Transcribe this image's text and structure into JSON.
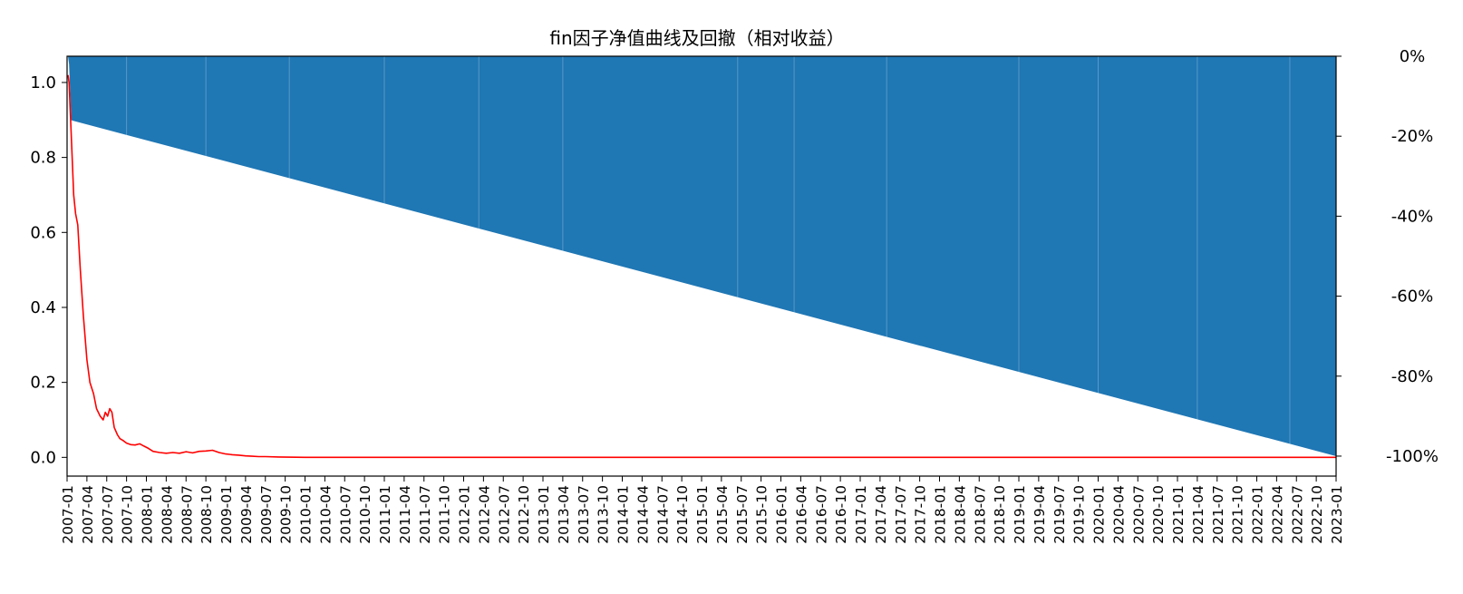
{
  "chart_data": {
    "type": "line",
    "title": "fin因子净值曲线及回撤（相对收益）",
    "xlabel": "",
    "ylabel": "",
    "xlim": [
      "2007-01",
      "2023-01"
    ],
    "ylim": [
      -0.05,
      1.07
    ],
    "y2lim": [
      -1.05,
      0.0
    ],
    "yticks": [
      "0.0",
      "0.2",
      "0.4",
      "0.6",
      "0.8",
      "1.0"
    ],
    "y2ticks": [
      "-100%",
      "-80%",
      "-60%",
      "-40%",
      "-20%",
      "0%"
    ],
    "xticks": [
      "2007-01",
      "2007-04",
      "2007-07",
      "2007-10",
      "2008-01",
      "2008-04",
      "2008-07",
      "2008-10",
      "2009-01",
      "2009-04",
      "2009-07",
      "2009-10",
      "2010-01",
      "2010-04",
      "2010-07",
      "2010-10",
      "2011-01",
      "2011-04",
      "2011-07",
      "2011-10",
      "2012-01",
      "2012-04",
      "2012-07",
      "2012-10",
      "2013-01",
      "2013-04",
      "2013-07",
      "2013-10",
      "2014-01",
      "2014-04",
      "2014-07",
      "2014-10",
      "2015-01",
      "2015-04",
      "2015-07",
      "2015-10",
      "2016-01",
      "2016-04",
      "2016-07",
      "2016-10",
      "2017-01",
      "2017-04",
      "2017-07",
      "2017-10",
      "2018-01",
      "2018-04",
      "2018-07",
      "2018-10",
      "2019-01",
      "2019-04",
      "2019-07",
      "2019-10",
      "2020-01",
      "2020-04",
      "2020-07",
      "2020-10",
      "2021-01",
      "2021-04",
      "2021-07",
      "2021-10",
      "2022-01",
      "2022-04",
      "2022-07",
      "2022-10",
      "2023-01"
    ],
    "grid": false,
    "series": [
      {
        "role": "net-value",
        "axis": "left",
        "color": "#ff0000",
        "x": [
          "2007-01-05",
          "2007-01-10",
          "2007-01-20",
          "2007-02-01",
          "2007-02-10",
          "2007-02-20",
          "2007-03-01",
          "2007-03-15",
          "2007-04-01",
          "2007-04-15",
          "2007-05-01",
          "2007-05-15",
          "2007-06-01",
          "2007-06-15",
          "2007-06-25",
          "2007-07-05",
          "2007-07-15",
          "2007-07-25",
          "2007-08-05",
          "2007-08-20",
          "2007-09-01",
          "2007-09-15",
          "2007-10-01",
          "2007-10-20",
          "2007-11-10",
          "2007-12-01",
          "2007-12-20",
          "2008-01-10",
          "2008-02-01",
          "2008-03-01",
          "2008-04-01",
          "2008-05-01",
          "2008-06-01",
          "2008-07-01",
          "2008-08-01",
          "2008-09-01",
          "2008-10-01",
          "2008-11-01",
          "2008-12-01",
          "2009-01-01",
          "2009-02-01",
          "2009-03-01",
          "2009-04-01",
          "2009-05-01",
          "2009-06-01",
          "2009-07-01",
          "2009-09-01",
          "2010-01-01",
          "2012-01-01",
          "2016-01-01",
          "2020-01-01",
          "2023-01-01"
        ],
        "values": [
          1.02,
          1.0,
          0.86,
          0.7,
          0.65,
          0.62,
          0.5,
          0.38,
          0.26,
          0.2,
          0.17,
          0.13,
          0.11,
          0.1,
          0.12,
          0.11,
          0.13,
          0.12,
          0.08,
          0.06,
          0.05,
          0.045,
          0.038,
          0.034,
          0.033,
          0.036,
          0.03,
          0.024,
          0.016,
          0.013,
          0.011,
          0.013,
          0.011,
          0.015,
          0.012,
          0.016,
          0.017,
          0.019,
          0.013,
          0.009,
          0.007,
          0.006,
          0.004,
          0.003,
          0.002,
          0.002,
          0.001,
          0.0,
          0.0,
          0.0,
          0.0,
          0.0
        ]
      },
      {
        "role": "drawdown",
        "axis": "right",
        "color": "#1f77b4",
        "type": "area",
        "x": [
          "2007-01-01",
          "2007-01-05",
          "2007-01-10",
          "2007-01-20",
          "2023-01-01"
        ],
        "values": [
          0.0,
          0.0,
          -0.02,
          -0.16,
          -1.0
        ]
      }
    ]
  }
}
